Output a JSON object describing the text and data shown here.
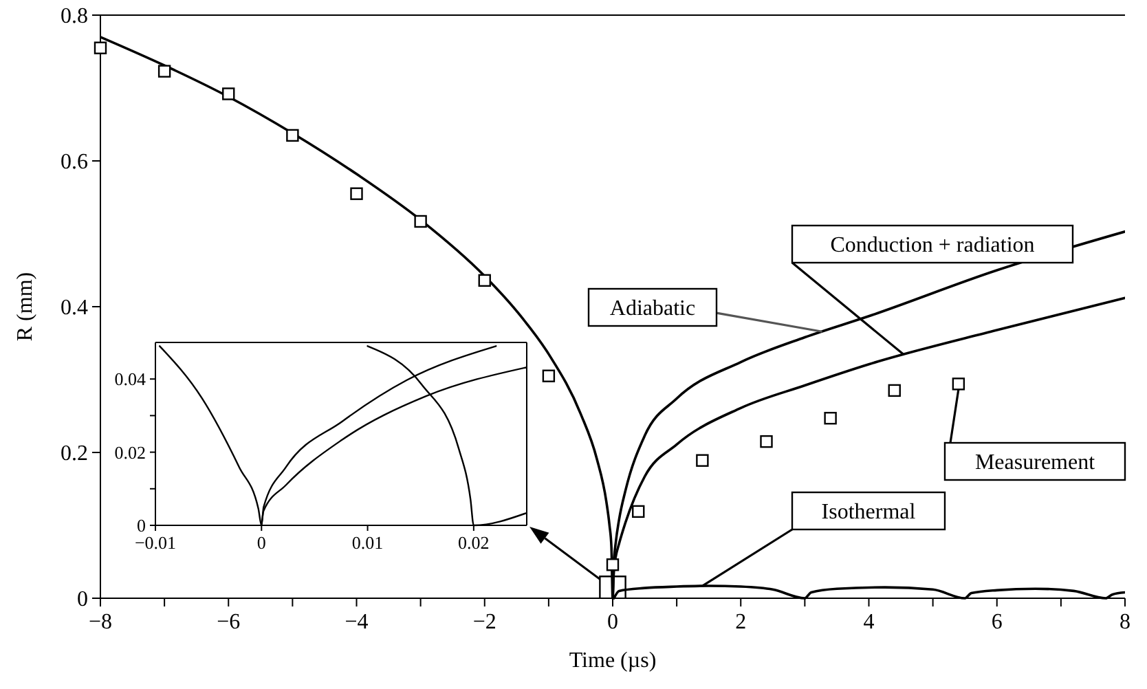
{
  "chart_data": [
    {
      "type": "line",
      "xlabel": "Time (µs)",
      "ylabel": "R (mm)",
      "xlim": [
        -8,
        8
      ],
      "ylim": [
        0,
        0.8
      ],
      "xticks": [
        -8,
        {
          "value": -7,
          "label": null
        },
        -6,
        {
          "value": -5,
          "label": null
        },
        -4,
        {
          "value": -3,
          "label": null
        },
        -2,
        {
          "value": -1,
          "label": null
        },
        0,
        {
          "value": 1,
          "label": null
        },
        2,
        {
          "value": 3,
          "label": null
        },
        4,
        {
          "value": 5,
          "label": null
        },
        6,
        {
          "value": 7,
          "label": null
        },
        8
      ],
      "yticks": [
        0,
        0.2,
        0.4,
        0.6,
        0.8
      ],
      "grid": false,
      "legend": false,
      "series": [
        {
          "name": "Adiabatic",
          "color": "#000000",
          "marker": "none",
          "line_style": "solid",
          "x": [
            -8,
            -7,
            -6,
            -5,
            -4,
            -3,
            -2,
            -1.5,
            -1,
            -0.5,
            -0.25,
            -0.1,
            -0.05,
            -0.02,
            0,
            0.02,
            0.05,
            0.1,
            0.2,
            0.5,
            1,
            2,
            3,
            4,
            6,
            8
          ],
          "values": [
            0.77,
            0.731,
            0.688,
            0.638,
            0.582,
            0.519,
            0.442,
            0.394,
            0.335,
            0.253,
            0.192,
            0.133,
            0.1,
            0.07,
            0,
            0.05,
            0.078,
            0.108,
            0.148,
            0.223,
            0.274,
            0.324,
            0.358,
            0.387,
            0.45,
            0.503
          ]
        },
        {
          "name": "Conduction + radiation",
          "color": "#000000",
          "marker": "none",
          "line_style": "solid",
          "x": [
            0,
            0.02,
            0.05,
            0.1,
            0.2,
            0.5,
            1,
            2,
            3,
            4,
            6,
            8
          ],
          "values": [
            0,
            0.04,
            0.058,
            0.075,
            0.104,
            0.167,
            0.211,
            0.261,
            0.292,
            0.321,
            0.368,
            0.412
          ]
        },
        {
          "name": "Isothermal",
          "color": "#000000",
          "marker": "none",
          "line_style": "solid",
          "x": [
            0.02,
            0.1,
            0.5,
            1,
            1.5,
            2,
            2.5,
            3,
            3.1,
            3.5,
            4.25,
            5,
            5.5,
            5.6,
            6,
            6.6,
            7.2,
            7.7,
            7.8,
            8
          ],
          "values": [
            0,
            0.01,
            0.014,
            0.016,
            0.017,
            0.016,
            0.012,
            0,
            0.008,
            0.013,
            0.015,
            0.012,
            0,
            0.007,
            0.011,
            0.013,
            0.01,
            0,
            0.005,
            0.008
          ]
        },
        {
          "name": "Measurement",
          "color": "#000000",
          "type": "scatter",
          "marker": "square",
          "x": [
            -8,
            -7,
            -6,
            -5,
            -4,
            -3,
            -2,
            -1,
            0,
            0.4,
            1.4,
            2.4,
            3.4,
            4.4,
            5.4
          ],
          "values": [
            0.755,
            0.723,
            0.692,
            0.635,
            0.555,
            0.517,
            0.436,
            0.305,
            0.046,
            0.119,
            0.189,
            0.215,
            0.247,
            0.285,
            0.294
          ]
        }
      ]
    },
    {
      "type": "line",
      "xlim": [
        -0.01,
        0.025
      ],
      "ylim": [
        0,
        0.05
      ],
      "xticks": [
        -0.01,
        0,
        0.01,
        0.02
      ],
      "yticks": [
        0,
        {
          "value": 0.01,
          "label": null
        },
        0.02,
        {
          "value": 0.03,
          "label": null
        },
        0.04
      ],
      "grid": false,
      "legend": false,
      "series": [
        {
          "color": "#000000",
          "marker": "none",
          "line_style": "solid",
          "x": [
            -0.0096,
            -0.0056,
            -0.0021,
            -0.0003,
            0,
            0.0002,
            0.0023,
            0.0076,
            0.0137,
            0.0221
          ],
          "values": [
            0.049,
            0.0347,
            0.0159,
            0.0046,
            0,
            0.005,
            0.0159,
            0.0284,
            0.0397,
            0.049
          ]
        },
        {
          "color": "#000000",
          "marker": "none",
          "line_style": "solid",
          "x": [
            0,
            0.0002,
            0.0023,
            0.0076,
            0.0155,
            0.025
          ],
          "values": [
            0,
            0.004,
            0.011,
            0.0234,
            0.0353,
            0.0432
          ]
        },
        {
          "color": "#000000",
          "marker": "none",
          "line_style": "solid",
          "x": [
            0.01,
            0.0151,
            0.0186,
            0.0197,
            0.02,
            0.025
          ],
          "values": [
            0.049,
            0.0385,
            0.0209,
            0.0071,
            0,
            0.0034
          ]
        }
      ]
    }
  ]
}
